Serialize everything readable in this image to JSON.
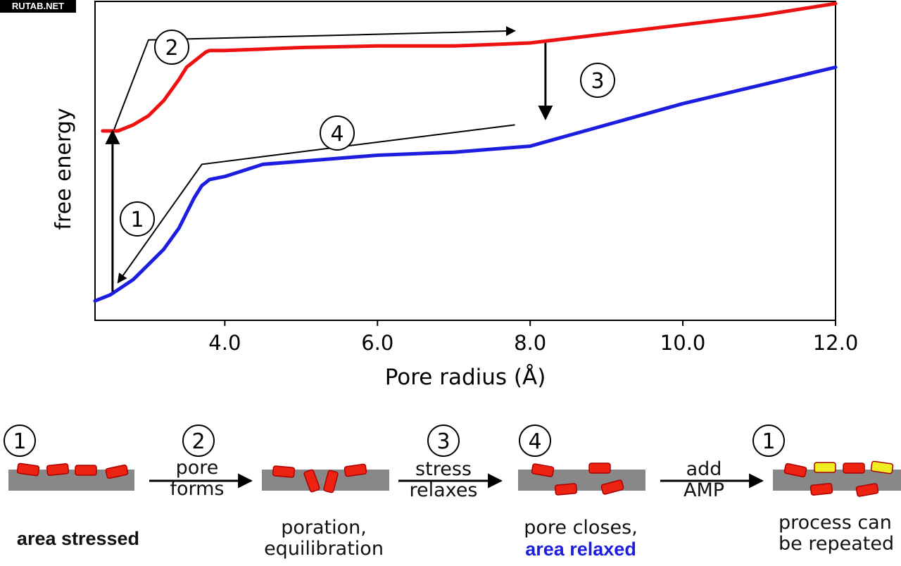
{
  "watermark": "RUTAB.NET",
  "chart_data": {
    "type": "line",
    "xlabel": "Pore radius (Å)",
    "ylabel": "free energy",
    "xlim": [
      2.3,
      12.0
    ],
    "ylim": [
      0,
      1
    ],
    "xticks": [
      "4.0",
      "6.0",
      "8.0",
      "10.0",
      "12.0"
    ],
    "xtick_values": [
      4.0,
      6.0,
      8.0,
      10.0,
      12.0
    ],
    "series": [
      {
        "color": "#ee1111",
        "x": [
          2.4,
          2.6,
          2.8,
          3.0,
          3.2,
          3.4,
          3.5,
          3.6,
          3.7,
          3.75,
          3.8,
          4.0,
          4.5,
          5.0,
          6.0,
          7.0,
          7.5,
          8.0,
          9.0,
          10.0,
          11.0,
          12.0
        ],
        "y": [
          0.58,
          0.58,
          0.6,
          0.63,
          0.68,
          0.75,
          0.79,
          0.81,
          0.83,
          0.84,
          0.845,
          0.845,
          0.85,
          0.855,
          0.86,
          0.86,
          0.865,
          0.87,
          0.9,
          0.93,
          0.96,
          1.0
        ]
      },
      {
        "color": "#1d1de0",
        "x": [
          2.3,
          2.5,
          2.8,
          3.0,
          3.2,
          3.4,
          3.5,
          3.6,
          3.7,
          3.75,
          3.8,
          4.0,
          4.5,
          5.0,
          6.0,
          7.0,
          7.5,
          8.0,
          9.0,
          10.0,
          11.0,
          12.0
        ],
        "y": [
          0.02,
          0.04,
          0.09,
          0.14,
          0.19,
          0.26,
          0.31,
          0.36,
          0.4,
          0.41,
          0.42,
          0.43,
          0.47,
          0.48,
          0.5,
          0.51,
          0.52,
          0.53,
          0.6,
          0.67,
          0.73,
          0.79
        ]
      }
    ],
    "step_arrows": [
      {
        "label": "2",
        "path": [
          [
            2.55,
            0.585
          ],
          [
            3.0,
            0.88
          ],
          [
            7.8,
            0.91
          ]
        ]
      },
      {
        "label": "3",
        "path": [
          [
            8.2,
            0.87
          ],
          [
            8.2,
            0.62
          ]
        ]
      },
      {
        "label": "4",
        "path": [
          [
            7.8,
            0.6
          ],
          [
            3.7,
            0.47
          ],
          [
            2.6,
            0.08
          ]
        ]
      },
      {
        "label": "1",
        "path": [
          [
            2.53,
            0.05
          ],
          [
            2.53,
            0.58
          ]
        ]
      }
    ]
  },
  "cycle": {
    "steps": [
      {
        "num": "1",
        "state": "area stressed",
        "state_color": "#ee1111"
      },
      {
        "num": "2",
        "arrow": [
          "pore",
          "forms"
        ],
        "state": [
          "poration,",
          "equilibration"
        ]
      },
      {
        "num": "3",
        "arrow": [
          "stress",
          "relaxes"
        ]
      },
      {
        "num": "4",
        "state": [
          "pore closes,"
        ],
        "state_bold": "area relaxed",
        "state_bold_color": "#1d1de0"
      },
      {
        "arrow": [
          "add",
          "AMP"
        ]
      },
      {
        "num": "1",
        "state": [
          "process can",
          "be repeated"
        ]
      }
    ]
  }
}
